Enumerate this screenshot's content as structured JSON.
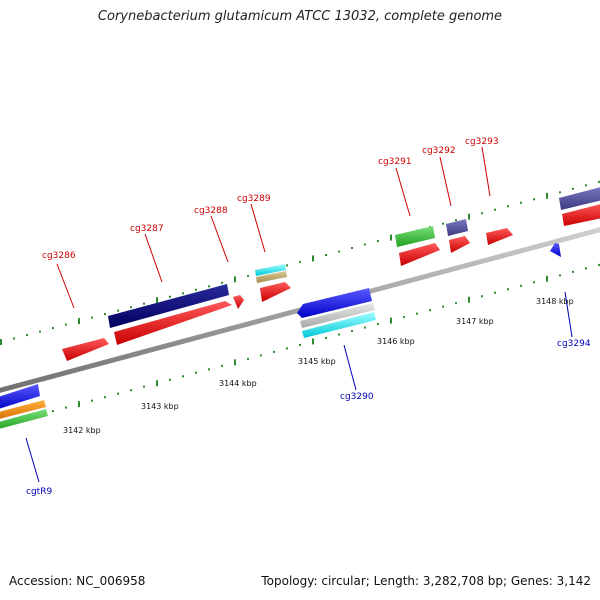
{
  "title": "Corynebacterium glutamicum ATCC 13032, complete genome",
  "footer": {
    "accession": "Accession: NC_006958",
    "summary": "Topology: circular; Length: 3,282,708 bp; Genes: 3,142"
  },
  "colors": {
    "forward_label": "#cc0000",
    "reverse_label": "#0000bb",
    "backbone": "#8c8c8c",
    "tick_ring": "#2e8b2e"
  },
  "scale_ticks": [
    {
      "label": "3142 kbp"
    },
    {
      "label": "3143 kbp"
    },
    {
      "label": "3144 kbp"
    },
    {
      "label": "3145 kbp"
    },
    {
      "label": "3146 kbp"
    },
    {
      "label": "3147 kbp"
    },
    {
      "label": "3148 kbp"
    }
  ],
  "gene_labels": [
    {
      "name": "cg3286",
      "strand": "forward"
    },
    {
      "name": "cg3287",
      "strand": "forward"
    },
    {
      "name": "cg3288",
      "strand": "forward"
    },
    {
      "name": "cg3289",
      "strand": "forward"
    },
    {
      "name": "cg3291",
      "strand": "forward"
    },
    {
      "name": "cg3292",
      "strand": "forward"
    },
    {
      "name": "cg3293",
      "strand": "forward"
    },
    {
      "name": "cg3290",
      "strand": "reverse"
    },
    {
      "name": "cg3294",
      "strand": "reverse"
    },
    {
      "name": "cgtR9",
      "strand": "reverse"
    }
  ]
}
